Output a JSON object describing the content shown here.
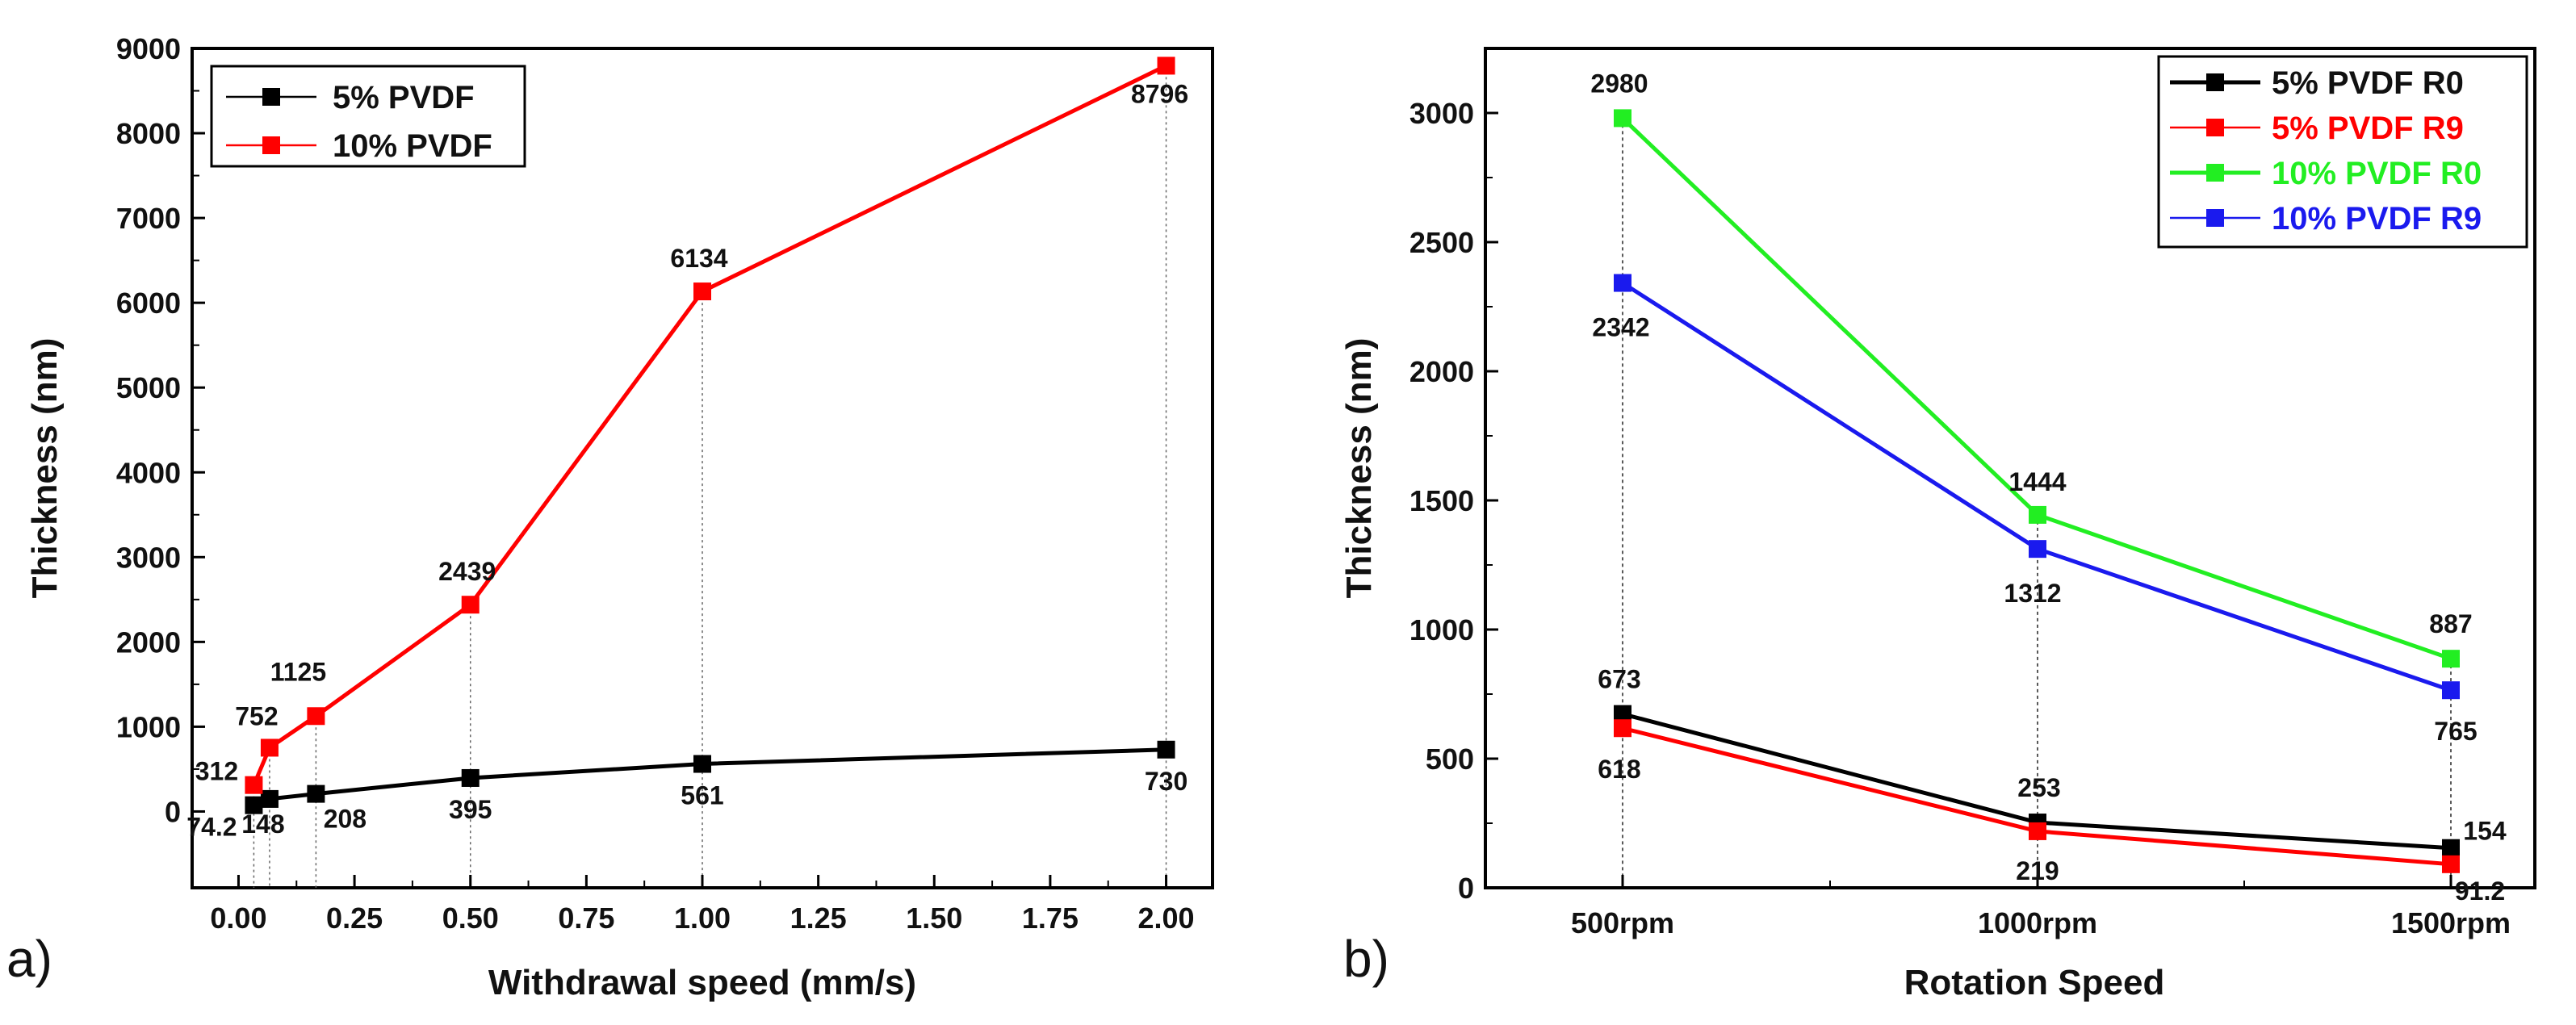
{
  "chart_data": [
    {
      "type": "line",
      "panel_label": "a)",
      "xlabel": "Withdrawal speed (mm/s)",
      "ylabel": "Thickness (nm)",
      "xlim": [
        -0.1,
        2.1
      ],
      "ylim": [
        -900,
        9000
      ],
      "xticks": [
        0.0,
        0.25,
        0.5,
        0.75,
        1.0,
        1.25,
        1.5,
        1.75,
        2.0
      ],
      "xtick_labels": [
        "0.00",
        "0.25",
        "0.50",
        "0.75",
        "1.00",
        "1.25",
        "1.50",
        "1.75",
        "2.00"
      ],
      "yticks": [
        0,
        1000,
        2000,
        3000,
        4000,
        5000,
        6000,
        7000,
        8000,
        9000
      ],
      "ytick_labels": [
        "0",
        "1000",
        "2000",
        "3000",
        "4000",
        "5000",
        "6000",
        "7000",
        "8000",
        "9000"
      ],
      "legend_position": "top-left",
      "series": [
        {
          "name": "5% PVDF",
          "color": "#000000",
          "x": [
            0.033,
            0.067,
            0.167,
            0.5,
            1.0,
            2.0
          ],
          "values": [
            74.2,
            148,
            208,
            395,
            561,
            730
          ],
          "labels": [
            "74.2",
            "148",
            "208",
            "395",
            "561",
            "730"
          ]
        },
        {
          "name": "10% PVDF",
          "color": "#ff0000",
          "x": [
            0.033,
            0.067,
            0.167,
            0.5,
            1.0,
            2.0
          ],
          "values": [
            312,
            752,
            1125,
            2439,
            6134,
            8796
          ],
          "labels": [
            "312",
            "752",
            "1125",
            "2439",
            "6134",
            "8796"
          ]
        }
      ]
    },
    {
      "type": "line",
      "panel_label": "b)",
      "xlabel": "Rotation Speed",
      "ylabel": "Thickness (nm)",
      "categories": [
        "500rpm",
        "1000rpm",
        "1500rpm"
      ],
      "ylim": [
        0,
        3250
      ],
      "yticks": [
        0,
        500,
        1000,
        1500,
        2000,
        2500,
        3000
      ],
      "ytick_labels": [
        "0",
        "500",
        "1000",
        "1500",
        "2000",
        "2500",
        "3000"
      ],
      "legend_position": "top-right",
      "series": [
        {
          "name": "5% PVDF R0",
          "color": "#000000",
          "values": [
            673,
            253,
            154
          ],
          "labels": [
            "673",
            "253",
            "154"
          ]
        },
        {
          "name": "5% PVDF R9",
          "color": "#ff0000",
          "values": [
            618,
            219,
            91.2
          ],
          "labels": [
            "618",
            "219",
            "91.2"
          ]
        },
        {
          "name": "10% PVDF R0",
          "color": "#22ee22",
          "values": [
            2980,
            1444,
            887
          ],
          "labels": [
            "2980",
            "1444",
            "887"
          ]
        },
        {
          "name": "10% PVDF R9",
          "color": "#1a1aee",
          "values": [
            2342,
            1312,
            765
          ],
          "labels": [
            "2342",
            "1312",
            "765"
          ]
        }
      ]
    }
  ]
}
